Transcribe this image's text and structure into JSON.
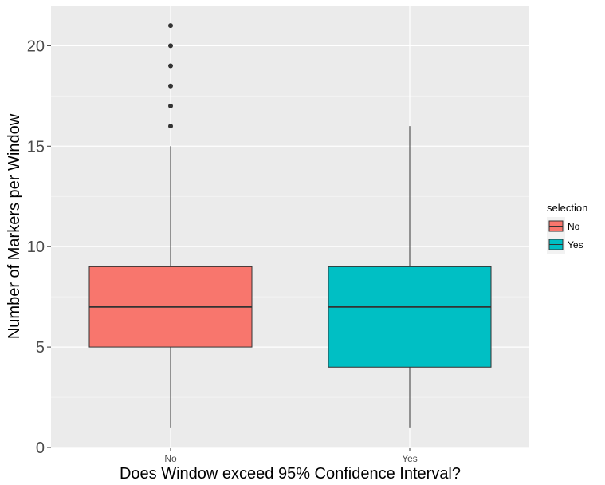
{
  "chart_data": {
    "type": "box",
    "xlabel": "Does Window exceed 95% Confidence Interval?",
    "ylabel": "Number of Markers per Window",
    "categories": [
      "No",
      "Yes"
    ],
    "ylim": [
      0,
      22
    ],
    "yticks": [
      0,
      5,
      10,
      15,
      20
    ],
    "grid": true,
    "legend": {
      "title": "selection",
      "position": "right",
      "entries": [
        {
          "label": "No",
          "color": "#F8766D"
        },
        {
          "label": "Yes",
          "color": "#00BFC4"
        }
      ]
    },
    "boxes": [
      {
        "category": "No",
        "min": 1,
        "q1": 5,
        "median": 7,
        "q3": 9,
        "max": 15,
        "outliers": [
          16,
          17,
          18,
          19,
          20,
          21
        ],
        "color": "#F8766D"
      },
      {
        "category": "Yes",
        "min": 1,
        "q1": 4,
        "median": 7,
        "q3": 9,
        "max": 16,
        "outliers": [],
        "color": "#00BFC4"
      }
    ]
  },
  "colors": {
    "panel_background": "#EBEBEB",
    "grid_major": "#FFFFFF",
    "box_outline": "#333333"
  }
}
